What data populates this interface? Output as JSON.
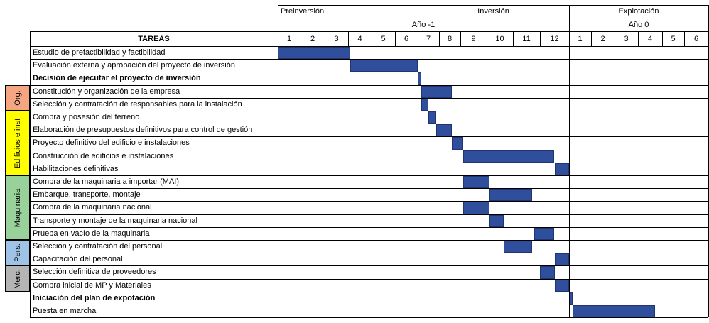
{
  "phases": [
    {
      "label": "Preinversión",
      "start": 0,
      "end": 6
    },
    {
      "label": "Inversión",
      "start": 6,
      "end": 12
    },
    {
      "label": "Explotación",
      "start": 12,
      "end": 18
    }
  ],
  "years": [
    {
      "label": "Año -1",
      "start": 0,
      "end": 12
    },
    {
      "label": "Año 0",
      "start": 12,
      "end": 18
    }
  ],
  "months": [
    "1",
    "2",
    "3",
    "4",
    "5",
    "6",
    "7",
    "8",
    "9",
    "10",
    "11",
    "12",
    "1",
    "2",
    "3",
    "4",
    "5",
    "6"
  ],
  "tasks_header": "TAREAS",
  "categories": [
    {
      "label": "Org.",
      "color": "#f4a582",
      "from": 3,
      "to": 4
    },
    {
      "label": "Edificios e inst",
      "color": "#ffff00",
      "from": 5,
      "to": 9
    },
    {
      "label": "Maquinaria",
      "color": "#98d19a",
      "from": 10,
      "to": 14
    },
    {
      "label": "Pers.",
      "color": "#9ec3e6",
      "from": 15,
      "to": 16
    },
    {
      "label": "Merc.",
      "color": "#b4b4b4",
      "from": 17,
      "to": 18
    }
  ],
  "tasks": [
    {
      "name": "Estudio de prefactibilidad y factibilidad",
      "bold": false,
      "start": 0,
      "end": 3.1
    },
    {
      "name": "Evaluación externa y aprobación del proyecto de inversión",
      "bold": false,
      "start": 3.1,
      "end": 6
    },
    {
      "name": "Decisión de ejecutar el proyecto de inversión",
      "bold": true,
      "start": 6,
      "end": 6.15
    },
    {
      "name": "Constitución y organización de la empresa",
      "bold": false,
      "start": 6.15,
      "end": 7.6
    },
    {
      "name": "Selección y contratación de responsables para la instalación",
      "bold": false,
      "start": 6.15,
      "end": 6.5
    },
    {
      "name": "Compra y posesión del terreno",
      "bold": false,
      "start": 6.5,
      "end": 6.85
    },
    {
      "name": "Elaboración de presupuestos definitivos para control de gestión",
      "bold": false,
      "start": 6.85,
      "end": 7.6
    },
    {
      "name": "Proyecto definitivo del edificio e instalaciones",
      "bold": false,
      "start": 7.6,
      "end": 8.1
    },
    {
      "name": "Construcción de edificios e instalaciones",
      "bold": false,
      "start": 8.1,
      "end": 11.5
    },
    {
      "name": "Habilitaciones definitivas",
      "bold": false,
      "start": 11.5,
      "end": 12
    },
    {
      "name": "Compra de la maquinaria a importar (MAI)",
      "bold": false,
      "start": 8.1,
      "end": 9.1
    },
    {
      "name": "Embarque, transporte, montaje",
      "bold": false,
      "start": 9.1,
      "end": 10.7
    },
    {
      "name": "Compra de la maquinaria nacional",
      "bold": false,
      "start": 8.1,
      "end": 9.1
    },
    {
      "name": "Transporte y montaje de la maquinaria nacional",
      "bold": false,
      "start": 9.1,
      "end": 9.65
    },
    {
      "name": "Prueba en vacío de la maquinaria",
      "bold": false,
      "start": 10.8,
      "end": 11.5
    },
    {
      "name": "Selección y contratación del personal",
      "bold": false,
      "start": 9.65,
      "end": 10.7
    },
    {
      "name": "Capacitación del personal",
      "bold": false,
      "start": 11.5,
      "end": 12
    },
    {
      "name": "Selección definitiva de proveedores",
      "bold": false,
      "start": 11.0,
      "end": 11.5
    },
    {
      "name": "Compra inicial de MP y Materiales",
      "bold": false,
      "start": 11.5,
      "end": 12
    },
    {
      "name": "Iniciación del plan de expotación",
      "bold": true,
      "start": 12,
      "end": 12.15
    },
    {
      "name": "Puesta en marcha",
      "bold": false,
      "start": 12.15,
      "end": 15.7
    }
  ],
  "bar_color": "#2f4f9c"
}
